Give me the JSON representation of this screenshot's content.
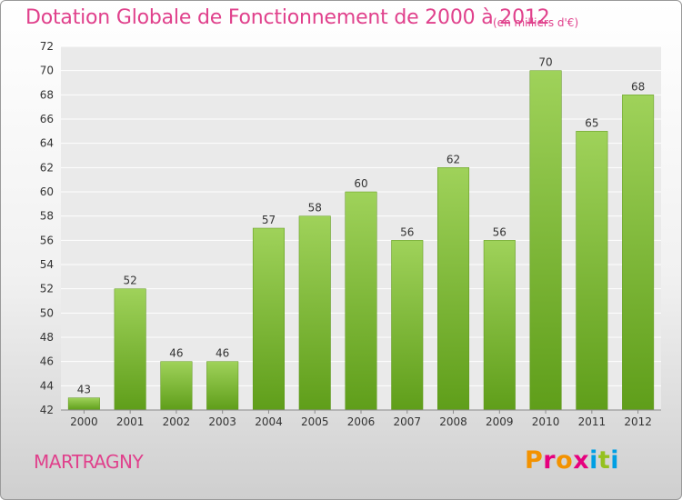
{
  "header": {
    "title": "Dotation Globale de Fonctionnement de 2000 à 2012",
    "subtitle": "(en milliers d'€)"
  },
  "footer": {
    "commune": "MARTRAGNY",
    "logo_text": "Proxiti",
    "logo_colors": [
      "#f39200",
      "#e6007e",
      "#f39200",
      "#e6007e",
      "#009fe3",
      "#95c11f",
      "#009fe3"
    ]
  },
  "chart_data": {
    "type": "bar",
    "title": "Dotation Globale de Fonctionnement de 2000 à 2012",
    "subtitle": "(en milliers d'€)",
    "xlabel": "",
    "ylabel": "",
    "categories": [
      "2000",
      "2001",
      "2002",
      "2003",
      "2004",
      "2005",
      "2006",
      "2007",
      "2008",
      "2009",
      "2010",
      "2011",
      "2012"
    ],
    "values": [
      43,
      52,
      46,
      46,
      57,
      58,
      60,
      56,
      62,
      56,
      70,
      65,
      68
    ],
    "ylim": [
      42,
      72
    ],
    "yticks": [
      42,
      44,
      46,
      48,
      50,
      52,
      54,
      56,
      58,
      60,
      62,
      64,
      66,
      68,
      70,
      72
    ],
    "grid": true,
    "bar_color_top": "#9fd25a",
    "bar_color_bottom": "#5f9e1a",
    "show_value_labels": true
  }
}
